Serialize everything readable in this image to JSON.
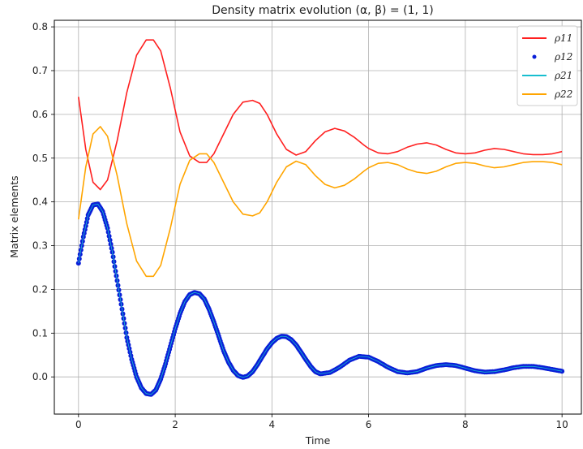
{
  "chart_data": {
    "type": "line",
    "title": "Density matrix evolution (α, β) = (1, 1)",
    "xlabel": "Time",
    "ylabel": "Matrix elements",
    "xlim": [
      -0.5,
      10.4
    ],
    "ylim": [
      -0.085,
      0.815
    ],
    "xticks": [
      0,
      2,
      4,
      6,
      8,
      10
    ],
    "yticks": [
      0.0,
      0.1,
      0.2,
      0.3,
      0.4,
      0.5,
      0.6,
      0.7,
      0.8
    ],
    "grid": true,
    "legend_placement": "top-right",
    "series": [
      {
        "name": "ρ11",
        "style": "line",
        "color": "#ff2020",
        "x": [
          0,
          0.15,
          0.3,
          0.45,
          0.6,
          0.8,
          1.0,
          1.2,
          1.4,
          1.55,
          1.7,
          1.9,
          2.1,
          2.3,
          2.5,
          2.65,
          2.8,
          3.0,
          3.2,
          3.4,
          3.6,
          3.75,
          3.9,
          4.1,
          4.3,
          4.5,
          4.7,
          4.9,
          5.1,
          5.3,
          5.5,
          5.7,
          5.9,
          6.0,
          6.2,
          6.4,
          6.6,
          6.8,
          7.0,
          7.2,
          7.4,
          7.6,
          7.8,
          8.0,
          8.2,
          8.4,
          8.6,
          8.8,
          9.0,
          9.2,
          9.4,
          9.6,
          9.8,
          10.0
        ],
        "values": [
          0.64,
          0.52,
          0.445,
          0.428,
          0.45,
          0.54,
          0.65,
          0.735,
          0.77,
          0.77,
          0.745,
          0.66,
          0.56,
          0.505,
          0.49,
          0.49,
          0.51,
          0.555,
          0.6,
          0.628,
          0.632,
          0.625,
          0.6,
          0.555,
          0.52,
          0.507,
          0.515,
          0.54,
          0.56,
          0.568,
          0.562,
          0.548,
          0.53,
          0.522,
          0.512,
          0.51,
          0.515,
          0.525,
          0.532,
          0.535,
          0.53,
          0.52,
          0.512,
          0.51,
          0.512,
          0.518,
          0.522,
          0.52,
          0.515,
          0.51,
          0.508,
          0.508,
          0.51,
          0.515
        ]
      },
      {
        "name": "ρ12",
        "style": "dots",
        "color": "#0a1fd8",
        "x": [
          0,
          0.1,
          0.2,
          0.3,
          0.4,
          0.5,
          0.6,
          0.7,
          0.8,
          0.9,
          1.0,
          1.1,
          1.2,
          1.3,
          1.4,
          1.5,
          1.6,
          1.7,
          1.8,
          1.9,
          2.0,
          2.1,
          2.2,
          2.3,
          2.4,
          2.5,
          2.6,
          2.7,
          2.8,
          2.9,
          3.0,
          3.1,
          3.2,
          3.3,
          3.4,
          3.5,
          3.6,
          3.7,
          3.8,
          3.9,
          4.0,
          4.1,
          4.2,
          4.3,
          4.4,
          4.5,
          4.6,
          4.7,
          4.8,
          4.9,
          5.0,
          5.2,
          5.4,
          5.6,
          5.8,
          6.0,
          6.2,
          6.4,
          6.6,
          6.8,
          7.0,
          7.2,
          7.4,
          7.6,
          7.8,
          8.0,
          8.2,
          8.4,
          8.6,
          8.8,
          9.0,
          9.2,
          9.4,
          9.6,
          9.8,
          10.0
        ],
        "values": [
          0.26,
          0.32,
          0.37,
          0.393,
          0.395,
          0.378,
          0.34,
          0.285,
          0.22,
          0.155,
          0.09,
          0.04,
          0.0,
          -0.025,
          -0.038,
          -0.04,
          -0.03,
          -0.005,
          0.03,
          0.07,
          0.11,
          0.145,
          0.172,
          0.188,
          0.193,
          0.19,
          0.178,
          0.155,
          0.125,
          0.093,
          0.06,
          0.034,
          0.015,
          0.003,
          -0.001,
          0.002,
          0.012,
          0.028,
          0.046,
          0.064,
          0.078,
          0.088,
          0.093,
          0.092,
          0.085,
          0.073,
          0.057,
          0.04,
          0.024,
          0.012,
          0.007,
          0.01,
          0.022,
          0.038,
          0.047,
          0.045,
          0.035,
          0.022,
          0.012,
          0.009,
          0.012,
          0.02,
          0.026,
          0.028,
          0.026,
          0.02,
          0.014,
          0.011,
          0.012,
          0.016,
          0.021,
          0.024,
          0.024,
          0.021,
          0.017,
          0.013
        ]
      },
      {
        "name": "ρ21",
        "style": "line",
        "color": "#17becf",
        "x": [
          0,
          0.1,
          0.2,
          0.3,
          0.4,
          0.5,
          0.6,
          0.7,
          0.8,
          0.9,
          1.0,
          1.1,
          1.2,
          1.3,
          1.4,
          1.5,
          1.6,
          1.7,
          1.8,
          1.9,
          2.0,
          2.1,
          2.2,
          2.3,
          2.4,
          2.5,
          2.6,
          2.7,
          2.8,
          2.9,
          3.0,
          3.1,
          3.2,
          3.3,
          3.4,
          3.5,
          3.6,
          3.7,
          3.8,
          3.9,
          4.0,
          4.1,
          4.2,
          4.3,
          4.4,
          4.5,
          4.6,
          4.7,
          4.8,
          4.9,
          5.0,
          5.2,
          5.4,
          5.6,
          5.8,
          6.0,
          6.2,
          6.4,
          6.6,
          6.8,
          7.0,
          7.2,
          7.4,
          7.6,
          7.8,
          8.0,
          8.2,
          8.4,
          8.6,
          8.8,
          9.0,
          9.2,
          9.4,
          9.6,
          9.8,
          10.0
        ],
        "values": [
          0.26,
          0.32,
          0.37,
          0.393,
          0.395,
          0.378,
          0.34,
          0.285,
          0.22,
          0.155,
          0.09,
          0.04,
          0.0,
          -0.025,
          -0.038,
          -0.04,
          -0.03,
          -0.005,
          0.03,
          0.07,
          0.11,
          0.145,
          0.172,
          0.188,
          0.193,
          0.19,
          0.178,
          0.155,
          0.125,
          0.093,
          0.06,
          0.034,
          0.015,
          0.003,
          -0.001,
          0.002,
          0.012,
          0.028,
          0.046,
          0.064,
          0.078,
          0.088,
          0.093,
          0.092,
          0.085,
          0.073,
          0.057,
          0.04,
          0.024,
          0.012,
          0.007,
          0.01,
          0.022,
          0.038,
          0.047,
          0.045,
          0.035,
          0.022,
          0.012,
          0.009,
          0.012,
          0.02,
          0.026,
          0.028,
          0.026,
          0.02,
          0.014,
          0.011,
          0.012,
          0.016,
          0.021,
          0.024,
          0.024,
          0.021,
          0.017,
          0.013
        ]
      },
      {
        "name": "ρ22",
        "style": "line",
        "color": "#ffa500",
        "x": [
          0,
          0.15,
          0.3,
          0.45,
          0.6,
          0.8,
          1.0,
          1.2,
          1.4,
          1.55,
          1.7,
          1.9,
          2.1,
          2.3,
          2.5,
          2.65,
          2.8,
          3.0,
          3.2,
          3.4,
          3.6,
          3.75,
          3.9,
          4.1,
          4.3,
          4.5,
          4.7,
          4.9,
          5.1,
          5.3,
          5.5,
          5.7,
          5.9,
          6.0,
          6.2,
          6.4,
          6.6,
          6.8,
          7.0,
          7.2,
          7.4,
          7.6,
          7.8,
          8.0,
          8.2,
          8.4,
          8.6,
          8.8,
          9.0,
          9.2,
          9.4,
          9.6,
          9.8,
          10.0
        ],
        "values": [
          0.36,
          0.48,
          0.555,
          0.572,
          0.55,
          0.46,
          0.35,
          0.265,
          0.23,
          0.23,
          0.255,
          0.34,
          0.44,
          0.495,
          0.51,
          0.51,
          0.49,
          0.445,
          0.4,
          0.372,
          0.368,
          0.375,
          0.4,
          0.445,
          0.48,
          0.493,
          0.485,
          0.46,
          0.44,
          0.432,
          0.438,
          0.452,
          0.47,
          0.478,
          0.488,
          0.49,
          0.485,
          0.475,
          0.468,
          0.465,
          0.47,
          0.48,
          0.488,
          0.49,
          0.488,
          0.482,
          0.478,
          0.48,
          0.485,
          0.49,
          0.492,
          0.492,
          0.49,
          0.485
        ]
      }
    ]
  }
}
